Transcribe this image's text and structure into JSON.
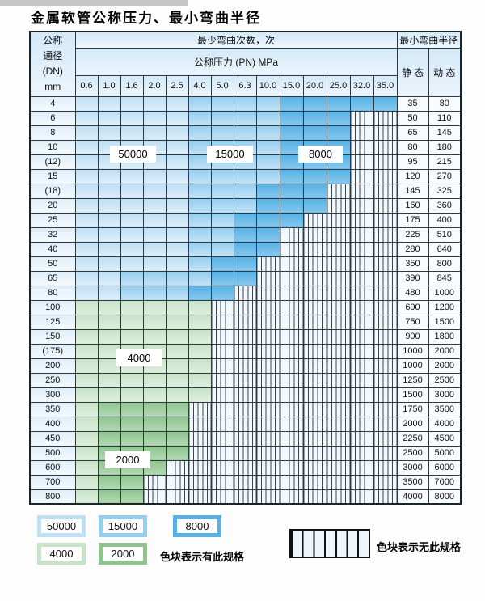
{
  "title": "金属软管公称压力、最小弯曲半径",
  "table": {
    "dn_header_lines": [
      "公称",
      "通径",
      "(DN)",
      "mm"
    ],
    "bend_header": "最少弯曲次数，次",
    "pressure_header": "公称压力 (PN) MPa",
    "radius_header": "最小弯曲半径",
    "static_label": "静 态",
    "dynamic_label": "动 态",
    "pressure_columns": [
      "0.6",
      "1.0",
      "1.6",
      "2.0",
      "2.5",
      "4.0",
      "5.0",
      "6.3",
      "10.0",
      "15.0",
      "20.0",
      "25.0",
      "32.0",
      "35.0"
    ],
    "zone_legend_meaning": {
      "lb": "50000",
      "mb": "15000",
      "db": "8000",
      "lg": "4000",
      "mg": "2000",
      "hx": "无此规格"
    },
    "rows": [
      {
        "dn": "4",
        "static": "35",
        "dynamic": "80",
        "zones": [
          "lb",
          "lb",
          "lb",
          "lb",
          "lb",
          "mb",
          "mb",
          "mb",
          "mb",
          "db",
          "db",
          "db",
          "db",
          "db"
        ]
      },
      {
        "dn": "6",
        "static": "50",
        "dynamic": "110",
        "zones": [
          "lb",
          "lb",
          "lb",
          "lb",
          "lb",
          "mb",
          "mb",
          "mb",
          "mb",
          "db",
          "db",
          "db",
          "hx",
          "hx"
        ]
      },
      {
        "dn": "8",
        "static": "65",
        "dynamic": "145",
        "zones": [
          "lb",
          "lb",
          "lb",
          "lb",
          "lb",
          "mb",
          "mb",
          "mb",
          "mb",
          "db",
          "db",
          "db",
          "hx",
          "hx"
        ]
      },
      {
        "dn": "10",
        "static": "80",
        "dynamic": "180",
        "zones": [
          "lb",
          "lb",
          "lb",
          "lb",
          "lb",
          "mb",
          "mb",
          "mb",
          "mb",
          "db",
          "db",
          "db",
          "hx",
          "hx"
        ]
      },
      {
        "dn": "(12)",
        "static": "95",
        "dynamic": "215",
        "zones": [
          "lb",
          "lb",
          "lb",
          "lb",
          "lb",
          "mb",
          "mb",
          "mb",
          "mb",
          "db",
          "db",
          "db",
          "hx",
          "hx"
        ]
      },
      {
        "dn": "15",
        "static": "120",
        "dynamic": "270",
        "zones": [
          "lb",
          "lb",
          "lb",
          "lb",
          "lb",
          "mb",
          "mb",
          "mb",
          "mb",
          "db",
          "db",
          "db",
          "hx",
          "hx"
        ]
      },
      {
        "dn": "(18)",
        "static": "145",
        "dynamic": "325",
        "zones": [
          "lb",
          "lb",
          "lb",
          "lb",
          "lb",
          "mb",
          "mb",
          "mb",
          "db",
          "db",
          "db",
          "hx",
          "hx",
          "hx"
        ]
      },
      {
        "dn": "20",
        "static": "160",
        "dynamic": "360",
        "zones": [
          "lb",
          "lb",
          "lb",
          "lb",
          "lb",
          "mb",
          "mb",
          "mb",
          "db",
          "db",
          "db",
          "hx",
          "hx",
          "hx"
        ]
      },
      {
        "dn": "25",
        "static": "175",
        "dynamic": "400",
        "zones": [
          "lb",
          "lb",
          "lb",
          "lb",
          "lb",
          "mb",
          "mb",
          "db",
          "db",
          "db",
          "hx",
          "hx",
          "hx",
          "hx"
        ]
      },
      {
        "dn": "32",
        "static": "225",
        "dynamic": "510",
        "zones": [
          "lb",
          "lb",
          "lb",
          "lb",
          "lb",
          "mb",
          "mb",
          "db",
          "db",
          "hx",
          "hx",
          "hx",
          "hx",
          "hx"
        ]
      },
      {
        "dn": "40",
        "static": "280",
        "dynamic": "640",
        "zones": [
          "lb",
          "lb",
          "lb",
          "lb",
          "lb",
          "mb",
          "mb",
          "db",
          "db",
          "hx",
          "hx",
          "hx",
          "hx",
          "hx"
        ]
      },
      {
        "dn": "50",
        "static": "350",
        "dynamic": "800",
        "zones": [
          "lb",
          "lb",
          "lb",
          "lb",
          "lb",
          "mb",
          "db",
          "db",
          "hx",
          "hx",
          "hx",
          "hx",
          "hx",
          "hx"
        ]
      },
      {
        "dn": "65",
        "static": "390",
        "dynamic": "845",
        "zones": [
          "lb",
          "lb",
          "mb",
          "mb",
          "mb",
          "mb",
          "db",
          "db",
          "hx",
          "hx",
          "hx",
          "hx",
          "hx",
          "hx"
        ]
      },
      {
        "dn": "80",
        "static": "480",
        "dynamic": "1000",
        "zones": [
          "lb",
          "lb",
          "mb",
          "mb",
          "mb",
          "db",
          "db",
          "hx",
          "hx",
          "hx",
          "hx",
          "hx",
          "hx",
          "hx"
        ]
      },
      {
        "dn": "100",
        "static": "600",
        "dynamic": "1200",
        "zones": [
          "lg",
          "lg",
          "lg",
          "lg",
          "lg",
          "lg",
          "hx",
          "hx",
          "hx",
          "hx",
          "hx",
          "hx",
          "hx",
          "hx"
        ]
      },
      {
        "dn": "125",
        "static": "750",
        "dynamic": "1500",
        "zones": [
          "lg",
          "lg",
          "lg",
          "lg",
          "lg",
          "lg",
          "hx",
          "hx",
          "hx",
          "hx",
          "hx",
          "hx",
          "hx",
          "hx"
        ]
      },
      {
        "dn": "150",
        "static": "900",
        "dynamic": "1800",
        "zones": [
          "lg",
          "lg",
          "lg",
          "lg",
          "lg",
          "lg",
          "hx",
          "hx",
          "hx",
          "hx",
          "hx",
          "hx",
          "hx",
          "hx"
        ]
      },
      {
        "dn": "(175)",
        "static": "1000",
        "dynamic": "2000",
        "zones": [
          "lg",
          "lg",
          "lg",
          "lg",
          "lg",
          "lg",
          "hx",
          "hx",
          "hx",
          "hx",
          "hx",
          "hx",
          "hx",
          "hx"
        ]
      },
      {
        "dn": "200",
        "static": "1000",
        "dynamic": "2000",
        "zones": [
          "lg",
          "lg",
          "lg",
          "lg",
          "lg",
          "lg",
          "hx",
          "hx",
          "hx",
          "hx",
          "hx",
          "hx",
          "hx",
          "hx"
        ]
      },
      {
        "dn": "250",
        "static": "1250",
        "dynamic": "2500",
        "zones": [
          "lg",
          "lg",
          "lg",
          "lg",
          "lg",
          "lg",
          "hx",
          "hx",
          "hx",
          "hx",
          "hx",
          "hx",
          "hx",
          "hx"
        ]
      },
      {
        "dn": "300",
        "static": "1500",
        "dynamic": "3000",
        "zones": [
          "lg",
          "lg",
          "lg",
          "lg",
          "lg",
          "lg",
          "hx",
          "hx",
          "hx",
          "hx",
          "hx",
          "hx",
          "hx",
          "hx"
        ]
      },
      {
        "dn": "350",
        "static": "1750",
        "dynamic": "3500",
        "zones": [
          "lg",
          "mg",
          "mg",
          "mg",
          "mg",
          "hx",
          "hx",
          "hx",
          "hx",
          "hx",
          "hx",
          "hx",
          "hx",
          "hx"
        ]
      },
      {
        "dn": "400",
        "static": "2000",
        "dynamic": "4000",
        "zones": [
          "lg",
          "mg",
          "mg",
          "mg",
          "mg",
          "hx",
          "hx",
          "hx",
          "hx",
          "hx",
          "hx",
          "hx",
          "hx",
          "hx"
        ]
      },
      {
        "dn": "450",
        "static": "2250",
        "dynamic": "4500",
        "zones": [
          "lg",
          "mg",
          "mg",
          "mg",
          "mg",
          "hx",
          "hx",
          "hx",
          "hx",
          "hx",
          "hx",
          "hx",
          "hx",
          "hx"
        ]
      },
      {
        "dn": "500",
        "static": "2500",
        "dynamic": "5000",
        "zones": [
          "lg",
          "mg",
          "mg",
          "mg",
          "mg",
          "hx",
          "hx",
          "hx",
          "hx",
          "hx",
          "hx",
          "hx",
          "hx",
          "hx"
        ]
      },
      {
        "dn": "600",
        "static": "3000",
        "dynamic": "6000",
        "zones": [
          "lg",
          "mg",
          "mg",
          "mg",
          "hx",
          "hx",
          "hx",
          "hx",
          "hx",
          "hx",
          "hx",
          "hx",
          "hx",
          "hx"
        ]
      },
      {
        "dn": "700",
        "static": "3500",
        "dynamic": "7000",
        "zones": [
          "lg",
          "mg",
          "mg",
          "hx",
          "hx",
          "hx",
          "hx",
          "hx",
          "hx",
          "hx",
          "hx",
          "hx",
          "hx",
          "hx"
        ]
      },
      {
        "dn": "800",
        "static": "4000",
        "dynamic": "8000",
        "zones": [
          "lg",
          "mg",
          "mg",
          "hx",
          "hx",
          "hx",
          "hx",
          "hx",
          "hx",
          "hx",
          "hx",
          "hx",
          "hx",
          "hx"
        ]
      }
    ]
  },
  "overlays": {
    "v50000": "50000",
    "v15000": "15000",
    "v8000": "8000",
    "v4000": "4000",
    "v2000": "2000"
  },
  "legend": {
    "sw50000": "50000",
    "sw15000": "15000",
    "sw8000": "8000",
    "sw4000": "4000",
    "sw2000": "2000",
    "has_spec_text": "色块表示有此规格",
    "no_spec_text": "色块表示无此规格"
  },
  "colors": {
    "light_blue": "#bedff4",
    "light_blue2": "#ddeffb",
    "medium_blue": "#94ceef",
    "medium_blue2": "#c2e3f7",
    "dark_blue": "#57b1e5",
    "dark_blue2": "#85c8ee",
    "light_green": "#c8e2c8",
    "light_green2": "#def0de",
    "medium_green": "#8fc48f",
    "medium_green2": "#b3d9b3",
    "hatch_bg": "#eef5fb",
    "hatch_line": "#3a464d",
    "header_bg": "#d4e9f8",
    "grid": "#2e3a40"
  }
}
